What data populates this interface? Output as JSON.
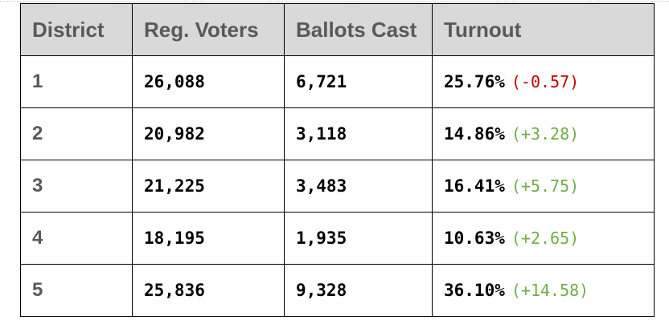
{
  "table": {
    "headers": [
      "District",
      "Reg. Voters",
      "Ballots Cast",
      "Turnout"
    ],
    "rows": [
      {
        "district": "1",
        "reg_voters": "26,088",
        "ballots_cast": "6,721",
        "turnout": "25.76%",
        "change": "(-0.57)",
        "change_color": "#c00000"
      },
      {
        "district": "2",
        "reg_voters": "20,982",
        "ballots_cast": "3,118",
        "turnout": "14.86%",
        "change": "(+3.28)",
        "change_color": "#70ad47"
      },
      {
        "district": "3",
        "reg_voters": "21,225",
        "ballots_cast": "3,483",
        "turnout": "16.41%",
        "change": "(+5.75)",
        "change_color": "#70ad47"
      },
      {
        "district": "4",
        "reg_voters": "18,195",
        "ballots_cast": "1,935",
        "turnout": "10.63%",
        "change": "(+2.65)",
        "change_color": "#70ad47"
      },
      {
        "district": "5",
        "reg_voters": "25,836",
        "ballots_cast": "9,328",
        "turnout": "36.10%",
        "change": "(+14.58)",
        "change_color": "#70ad47"
      }
    ]
  },
  "colors": {
    "header_bg": "#d9d9d9",
    "header_text": "#595959",
    "negative_change": "#c00000",
    "positive_change": "#70ad47"
  }
}
